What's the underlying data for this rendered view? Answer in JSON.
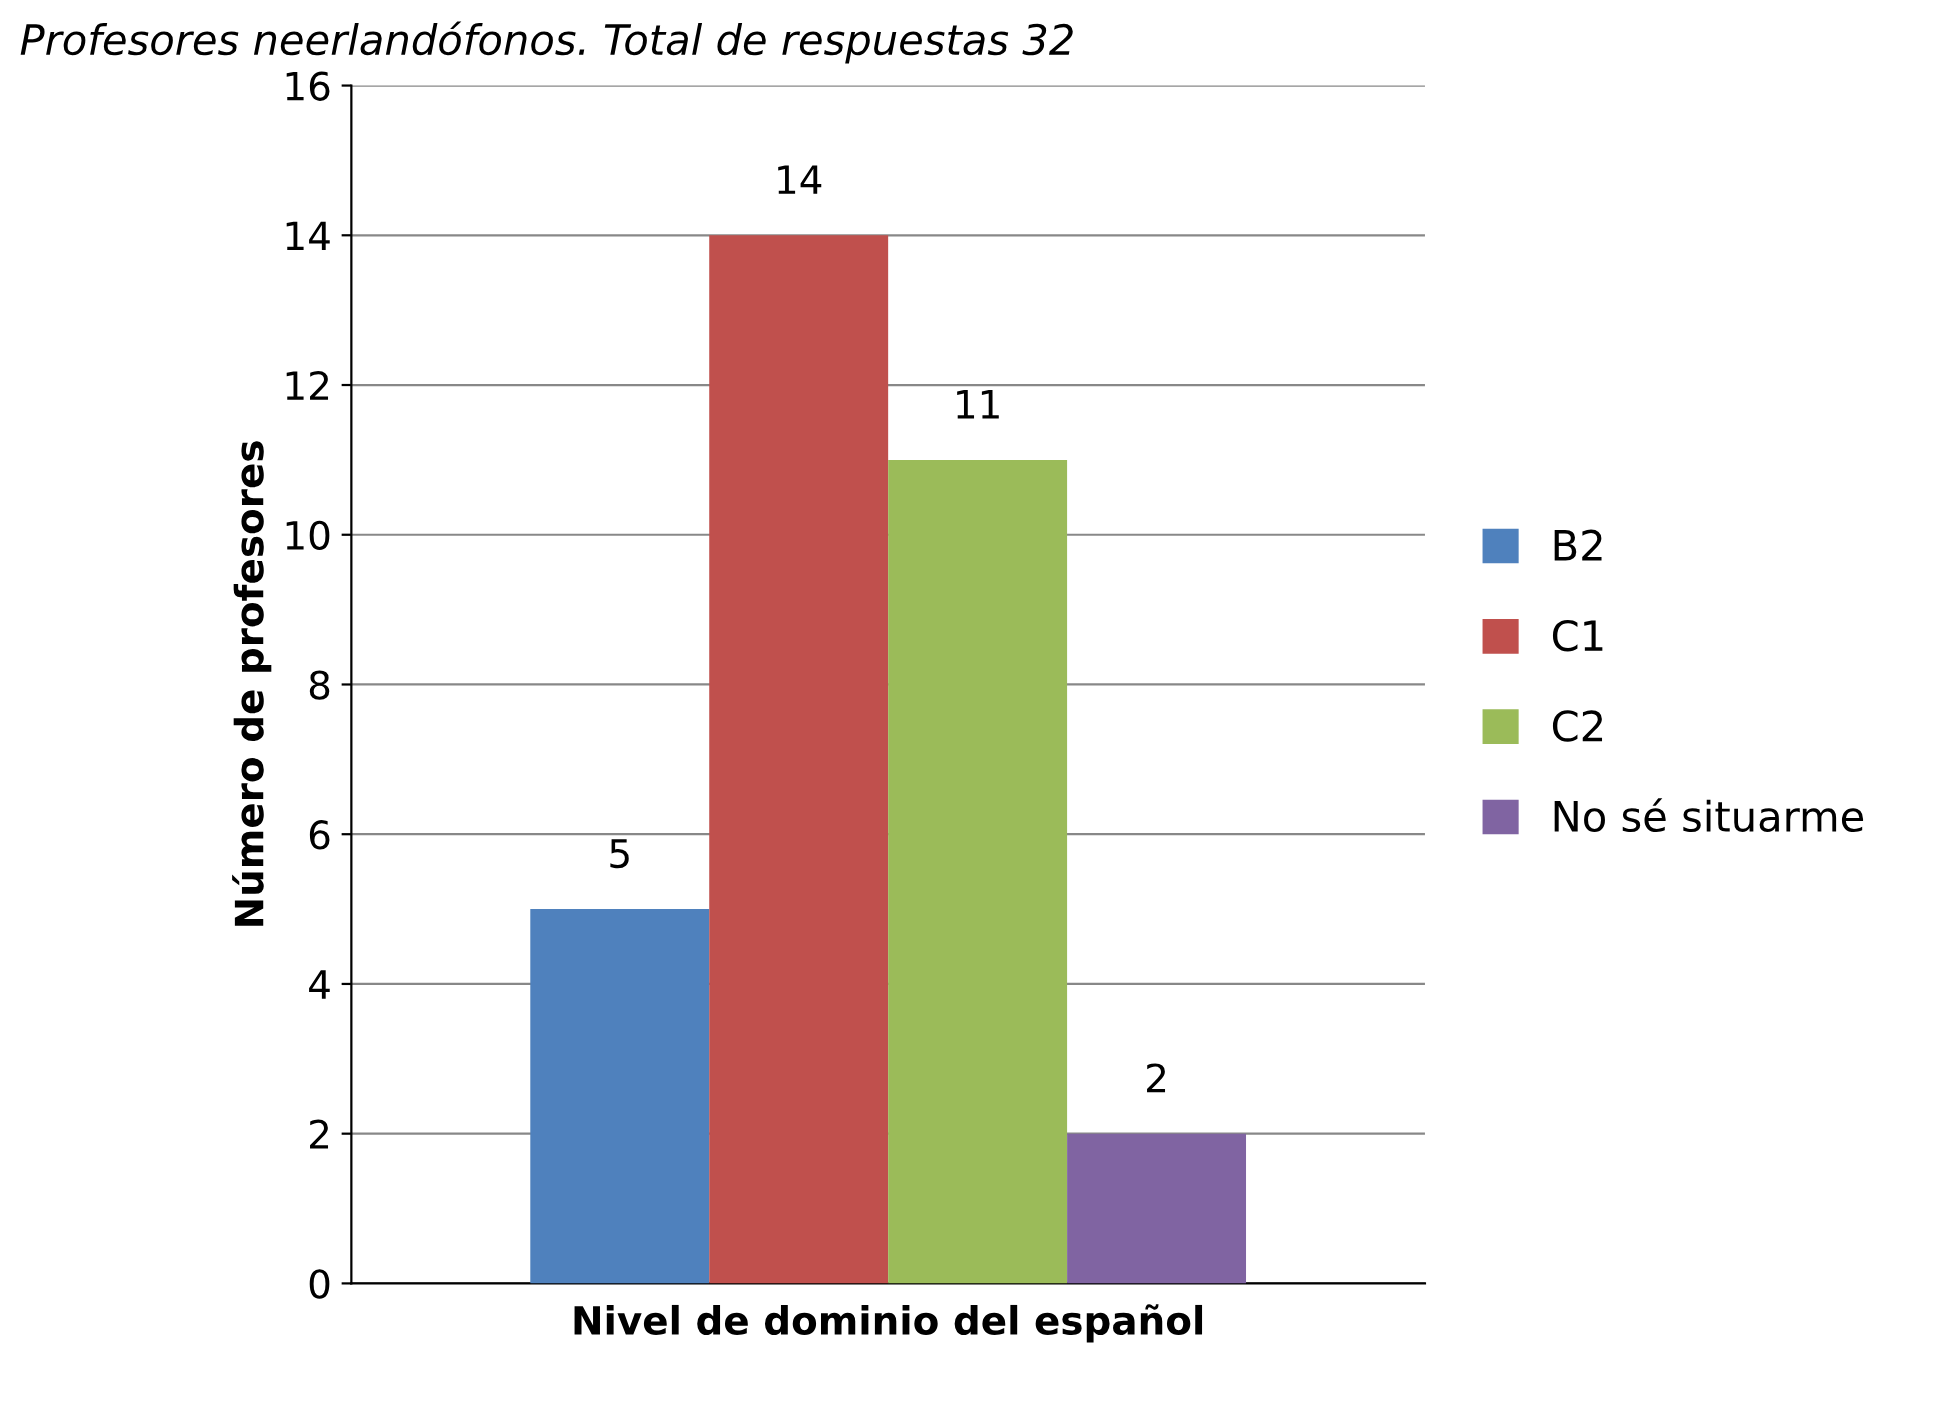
{
  "chart_data": {
    "type": "bar",
    "title": "Profesores neerlandófonos. Total de respuestas 32",
    "xlabel": "Nivel de dominio del español",
    "ylabel": "Número de profesores",
    "categories": [
      null
    ],
    "series": [
      {
        "name": "B2",
        "color": "#4f81bd",
        "values": [
          5
        ]
      },
      {
        "name": "C1",
        "color": "#c0504d",
        "values": [
          14
        ]
      },
      {
        "name": "C2",
        "color": "#9bbb59",
        "values": [
          11
        ]
      },
      {
        "name": "No sé situarme",
        "color": "#8064a2",
        "values": [
          2
        ]
      }
    ],
    "ylim": [
      0,
      16
    ],
    "yticks": [
      0,
      2,
      4,
      6,
      8,
      10,
      12,
      14,
      16
    ],
    "grid": "y",
    "legend": "right",
    "data_labels": true
  }
}
